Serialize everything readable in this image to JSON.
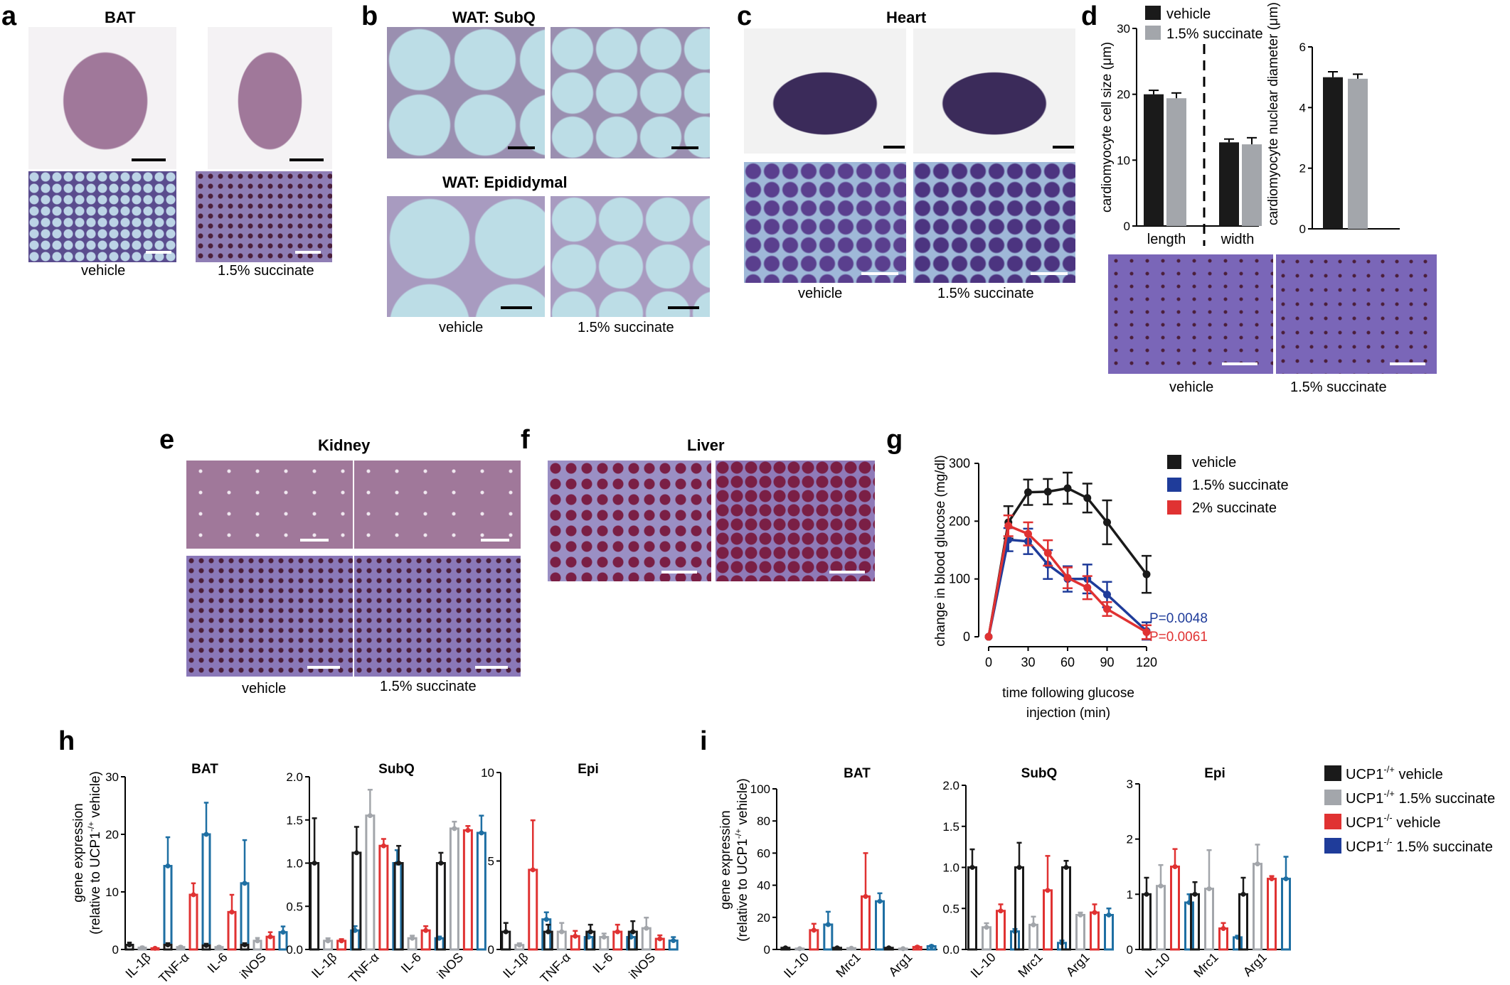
{
  "panels": {
    "a": {
      "letter": "a",
      "title": "BAT",
      "labels": [
        "vehicle",
        "1.5% succinate"
      ]
    },
    "b": {
      "letter": "b",
      "title_top": "WAT: SubQ",
      "title_bottom": "WAT: Epididymal",
      "labels": [
        "vehicle",
        "1.5% succinate"
      ]
    },
    "c": {
      "letter": "c",
      "title": "Heart",
      "labels": [
        "vehicle",
        "1.5% succinate"
      ]
    },
    "d": {
      "letter": "d",
      "labels": [
        "vehicle",
        "1.5% succinate"
      ]
    },
    "e": {
      "letter": "e",
      "title": "Kidney",
      "labels": [
        "vehicle",
        "1.5% succinate"
      ]
    },
    "f": {
      "letter": "f",
      "title": "Liver"
    },
    "g": {
      "letter": "g"
    },
    "h": {
      "letter": "h"
    },
    "i": {
      "letter": "i"
    }
  },
  "colors": {
    "black": "#1a1a1a",
    "gray": "#a3a6ab",
    "blue": "#1f3c9a",
    "red": "#e03232",
    "teal": "#1e6fa3",
    "he_pink": "#a0789a",
    "he_purple": "#5a3f8e",
    "wat_blue": "#bcdde6",
    "heart_dark": "#3b2b5a"
  },
  "chart_data": [
    {
      "id": "d-size",
      "type": "bar",
      "ylabel": "cardiomyocyte cell size (μm)",
      "categories": [
        "length",
        "width"
      ],
      "ylim": [
        0,
        30
      ],
      "yticks": [
        0,
        10,
        20,
        30
      ],
      "series": [
        {
          "name": "vehicle",
          "values": [
            20.0,
            12.7
          ],
          "errors": [
            0.6,
            0.5
          ]
        },
        {
          "name": "1.5% succinate",
          "values": [
            19.4,
            12.4
          ],
          "errors": [
            0.8,
            1.0
          ]
        }
      ]
    },
    {
      "id": "d-nuc",
      "type": "bar",
      "ylabel": "cardiomyocyte nuclear diameter (μm)",
      "categories": [
        ""
      ],
      "ylim": [
        0,
        6
      ],
      "yticks": [
        0,
        2,
        4,
        6
      ],
      "series": [
        {
          "name": "vehicle",
          "values": [
            5.0
          ],
          "errors": [
            0.18
          ]
        },
        {
          "name": "1.5% succinate",
          "values": [
            4.95
          ],
          "errors": [
            0.15
          ]
        }
      ]
    },
    {
      "id": "g",
      "type": "line",
      "xlabel": "time following glucose injection (min)",
      "ylabel": "change in blood glucose (mg/dl)",
      "xlim": [
        0,
        120
      ],
      "ylim": [
        0,
        300
      ],
      "xticks": [
        0,
        30,
        60,
        90,
        120
      ],
      "yticks": [
        0,
        100,
        200,
        300
      ],
      "series": [
        {
          "name": "vehicle",
          "x": [
            0,
            15,
            30,
            45,
            60,
            75,
            90,
            120
          ],
          "y": [
            0,
            198,
            250,
            251,
            257,
            240,
            198,
            108
          ],
          "errors": [
            0,
            28,
            22,
            22,
            27,
            25,
            38,
            32
          ]
        },
        {
          "name": "1.5% succinate",
          "x": [
            0,
            15,
            30,
            45,
            60,
            75,
            90,
            120
          ],
          "y": [
            0,
            168,
            165,
            125,
            100,
            100,
            73,
            10
          ],
          "errors": [
            0,
            20,
            22,
            25,
            22,
            25,
            22,
            15
          ]
        },
        {
          "name": "2% succinate",
          "x": [
            0,
            15,
            30,
            45,
            60,
            75,
            90,
            120
          ],
          "y": [
            0,
            192,
            178,
            145,
            102,
            85,
            48,
            8
          ],
          "errors": [
            0,
            18,
            20,
            22,
            18,
            20,
            12,
            12
          ]
        }
      ],
      "annotations": [
        {
          "text": "P=0.0048",
          "series": "1.5% succinate"
        },
        {
          "text": "P=0.0061",
          "series": "2% succinate"
        }
      ]
    },
    {
      "id": "h-bat",
      "type": "bar",
      "title": "BAT",
      "ylabel": "gene expression (relative to UCP1-/+ vehicle)",
      "categories": [
        "IL-1β",
        "TNF-α",
        "IL-6",
        "iNOS"
      ],
      "ylim": [
        0,
        30
      ],
      "yticks": [
        0,
        10,
        20,
        30
      ],
      "series": [
        {
          "name": "UCP1-/+ vehicle",
          "values": [
            0.8,
            0.8,
            0.7,
            0.8
          ],
          "errors": [
            0.4,
            0.3,
            0.3,
            0.3
          ]
        },
        {
          "name": "UCP1-/+ 1.5% succinate",
          "values": [
            0.3,
            0.4,
            0.4,
            1.5
          ],
          "errors": [
            0.2,
            0.2,
            0.2,
            0.5
          ]
        },
        {
          "name": "UCP1-/- vehicle",
          "values": [
            0.2,
            9.5,
            6.5,
            2.2
          ],
          "errors": [
            0.1,
            2.0,
            3.0,
            0.8
          ]
        },
        {
          "name": "UCP1-/- 1.5% succinate",
          "values": [
            14.5,
            20.0,
            11.5,
            3.0
          ],
          "errors": [
            5.0,
            5.5,
            7.5,
            1.0
          ]
        }
      ]
    },
    {
      "id": "h-subq",
      "type": "bar",
      "title": "SubQ",
      "categories": [
        "IL-1β",
        "TNF-α",
        "IL-6",
        "iNOS"
      ],
      "ylim": [
        0,
        2.0
      ],
      "yticks": [
        0,
        0.5,
        1.0,
        1.5,
        2.0
      ],
      "series": [
        {
          "name": "UCP1-/+ vehicle",
          "values": [
            1.0,
            1.12,
            1.0,
            1.0
          ],
          "errors": [
            0.52,
            0.3,
            0.2,
            0.12
          ]
        },
        {
          "name": "UCP1-/+ 1.5% succinate",
          "values": [
            0.1,
            1.55,
            0.13,
            1.4
          ],
          "errors": [
            0.03,
            0.3,
            0.03,
            0.08
          ]
        },
        {
          "name": "UCP1-/- vehicle",
          "values": [
            0.1,
            1.2,
            0.22,
            1.38
          ],
          "errors": [
            0.02,
            0.08,
            0.05,
            0.05
          ]
        },
        {
          "name": "UCP1-/- 1.5% succinate",
          "values": [
            0.22,
            1.0,
            0.13,
            1.35
          ],
          "errors": [
            0.05,
            0.15,
            0.02,
            0.2
          ]
        }
      ]
    },
    {
      "id": "h-epi",
      "type": "bar",
      "title": "Epi",
      "categories": [
        "IL-1β",
        "TNF-α",
        "IL-6",
        "iNOS"
      ],
      "ylim": [
        0,
        10
      ],
      "yticks": [
        0,
        5,
        10
      ],
      "series": [
        {
          "name": "UCP1-/+ vehicle",
          "values": [
            1.0,
            1.0,
            1.0,
            1.0
          ],
          "errors": [
            0.5,
            0.4,
            0.4,
            0.6
          ]
        },
        {
          "name": "UCP1-/+ 1.5% succinate",
          "values": [
            0.25,
            1.0,
            0.7,
            1.2
          ],
          "errors": [
            0.1,
            0.5,
            0.2,
            0.6
          ]
        },
        {
          "name": "UCP1-/- vehicle",
          "values": [
            4.5,
            0.75,
            1.0,
            0.6
          ],
          "errors": [
            2.8,
            0.3,
            0.4,
            0.2
          ]
        },
        {
          "name": "UCP1-/- 1.5% succinate",
          "values": [
            1.7,
            0.7,
            0.7,
            0.5
          ],
          "errors": [
            0.4,
            0.2,
            0.2,
            0.2
          ]
        }
      ]
    },
    {
      "id": "i-bat",
      "type": "bar",
      "title": "BAT",
      "ylabel": "gene expression (relative to UCP1-/+ vehicle)",
      "categories": [
        "IL-10",
        "Mrc1",
        "Arg1"
      ],
      "ylim": [
        0,
        100
      ],
      "yticks": [
        0,
        20,
        40,
        60,
        80,
        100
      ],
      "series": [
        {
          "name": "UCP1-/+ vehicle",
          "values": [
            1.0,
            1.0,
            1.0
          ],
          "errors": [
            0.3,
            0.3,
            0.3
          ]
        },
        {
          "name": "UCP1-/+ 1.5% succinate",
          "values": [
            0.5,
            0.8,
            0.5
          ],
          "errors": [
            0.2,
            0.2,
            0.2
          ]
        },
        {
          "name": "UCP1-/- vehicle",
          "values": [
            12.0,
            33.0,
            1.5
          ],
          "errors": [
            4.0,
            27.0,
            0.5
          ]
        },
        {
          "name": "UCP1-/- 1.5% succinate",
          "values": [
            15.5,
            30.0,
            2.0
          ],
          "errors": [
            8.0,
            5.0,
            0.5
          ]
        }
      ]
    },
    {
      "id": "i-subq",
      "type": "bar",
      "title": "SubQ",
      "categories": [
        "IL-10",
        "Mrc1",
        "Arg1"
      ],
      "ylim": [
        0,
        2.0
      ],
      "yticks": [
        0,
        0.5,
        1.0,
        1.5,
        2.0
      ],
      "series": [
        {
          "name": "UCP1-/+ vehicle",
          "values": [
            1.0,
            1.0,
            1.0
          ],
          "errors": [
            0.22,
            0.3,
            0.08
          ]
        },
        {
          "name": "UCP1-/+ 1.5% succinate",
          "values": [
            0.27,
            0.3,
            0.42
          ],
          "errors": [
            0.05,
            0.1,
            0.03
          ]
        },
        {
          "name": "UCP1-/- vehicle",
          "values": [
            0.47,
            0.72,
            0.45
          ],
          "errors": [
            0.08,
            0.42,
            0.1
          ]
        },
        {
          "name": "UCP1-/- 1.5% succinate",
          "values": [
            0.22,
            0.08,
            0.42
          ],
          "errors": [
            0.03,
            0.03,
            0.08
          ]
        }
      ]
    },
    {
      "id": "i-epi",
      "type": "bar",
      "title": "Epi",
      "categories": [
        "IL-10",
        "Mrc1",
        "Arg1"
      ],
      "ylim": [
        0,
        3
      ],
      "yticks": [
        0,
        1,
        2,
        3
      ],
      "series": [
        {
          "name": "UCP1-/+ vehicle",
          "values": [
            1.0,
            1.0,
            1.0
          ],
          "errors": [
            0.3,
            0.22,
            0.3
          ]
        },
        {
          "name": "UCP1-/+ 1.5% succinate",
          "values": [
            1.15,
            1.1,
            1.55
          ],
          "errors": [
            0.38,
            0.7,
            0.35
          ]
        },
        {
          "name": "UCP1-/- vehicle",
          "values": [
            1.5,
            0.38,
            1.28
          ],
          "errors": [
            0.32,
            0.1,
            0.05
          ]
        },
        {
          "name": "UCP1-/- 1.5% succinate",
          "values": [
            0.85,
            0.22,
            1.28
          ],
          "errors": [
            0.15,
            0.03,
            0.4
          ]
        }
      ]
    }
  ],
  "legends": {
    "d": [
      {
        "text": "vehicle",
        "color": "#1a1a1a"
      },
      {
        "text": "1.5% succinate",
        "color": "#a3a6ab"
      }
    ],
    "g": [
      {
        "text": "vehicle",
        "color": "#1a1a1a"
      },
      {
        "text": "1.5% succinate",
        "color": "#1f3c9a"
      },
      {
        "text": "2% succinate",
        "color": "#e03232"
      }
    ],
    "i": [
      {
        "text": "UCP1-/+ vehicle",
        "color": "#1a1a1a"
      },
      {
        "text": "UCP1-/+ 1.5% succinate",
        "color": "#a3a6ab"
      },
      {
        "text": "UCP1-/- vehicle",
        "color": "#e03232"
      },
      {
        "text": "UCP1-/- 1.5% succinate",
        "color": "#1f3c9a"
      }
    ]
  }
}
